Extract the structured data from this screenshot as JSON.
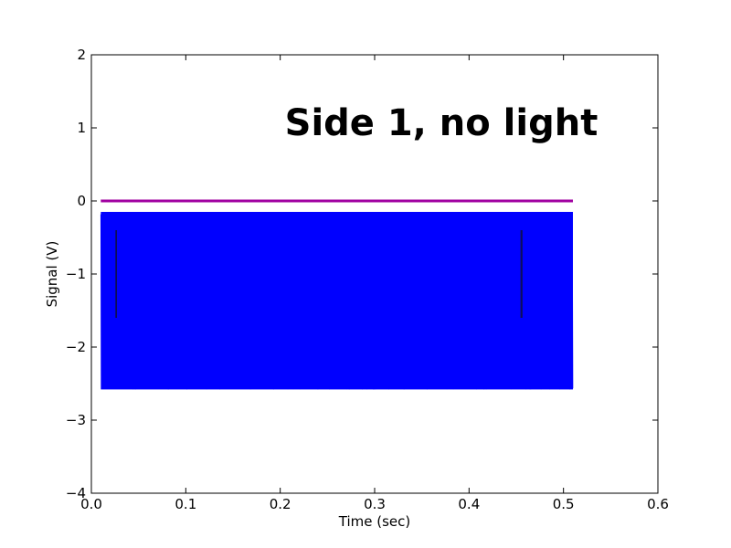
{
  "chart_data": {
    "type": "line",
    "title": "",
    "annotation": "Side 1, no light",
    "xlabel": "Time (sec)",
    "ylabel": "Signal (V)",
    "xlim": [
      0.0,
      0.6
    ],
    "ylim": [
      -4,
      2
    ],
    "xticks": [
      0.0,
      0.1,
      0.2,
      0.3,
      0.4,
      0.5,
      0.6
    ],
    "xtick_labels": [
      "0.0",
      "0.1",
      "0.2",
      "0.3",
      "0.4",
      "0.5",
      "0.6"
    ],
    "yticks": [
      -4,
      -3,
      -2,
      -1,
      0,
      1,
      2
    ],
    "ytick_labels": [
      "−4",
      "−3",
      "−2",
      "−1",
      "0",
      "1",
      "2"
    ],
    "grid": false,
    "legend": "none",
    "series": [
      {
        "color": "#0000ff",
        "x_range": [
          0.01,
          0.51
        ],
        "y_min": -2.58,
        "y_max": -0.15,
        "style": "dense-oscillation"
      },
      {
        "color": "#a000a0",
        "x_range": [
          0.01,
          0.51
        ],
        "y_value": 0.0,
        "style": "flat"
      }
    ],
    "colors": {
      "frame": "#000000",
      "background": "#ffffff"
    }
  }
}
